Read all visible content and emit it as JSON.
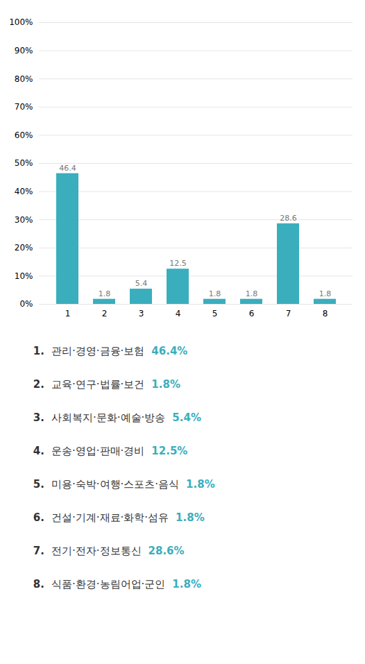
{
  "chart_data": {
    "type": "bar",
    "categories": [
      "1",
      "2",
      "3",
      "4",
      "5",
      "6",
      "7",
      "8"
    ],
    "values": [
      46.4,
      1.8,
      5.4,
      12.5,
      1.8,
      1.8,
      28.6,
      1.8
    ],
    "color": "#3aaebd",
    "ylim": [
      0,
      100
    ],
    "yticks": [
      {
        "value": 0,
        "label": "0%"
      },
      {
        "value": 10,
        "label": "10%"
      },
      {
        "value": 20,
        "label": "20%"
      },
      {
        "value": 30,
        "label": "30%"
      },
      {
        "value": 40,
        "label": "40%"
      },
      {
        "value": 50,
        "label": "50%"
      },
      {
        "value": 60,
        "label": "60%"
      },
      {
        "value": 70,
        "label": "70%"
      },
      {
        "value": 80,
        "label": "80%"
      },
      {
        "value": 90,
        "label": "90%"
      },
      {
        "value": 100,
        "label": "100%"
      }
    ],
    "grid": true,
    "data_labels": true,
    "annotations": [
      [
        "1.",
        "관리·경영·금융·보험",
        "46.4%"
      ],
      [
        "2.",
        "교육·연구·법률·보건",
        "1.8%"
      ],
      [
        "3.",
        "사회복지·문화·예술·방송",
        "5.4%"
      ],
      [
        "4.",
        "운송·영업·판매·경비",
        "12.5%"
      ],
      [
        "5.",
        "미용·숙박·여행·스포츠·음식",
        "1.8%"
      ],
      [
        "6.",
        "건설·기계·재료·화학·섬유",
        "1.8%"
      ],
      [
        "7.",
        "전기·전자·정보통신",
        "28.6%"
      ],
      [
        "8.",
        "식품·환경·농림어업·군인",
        "1.8%"
      ]
    ]
  }
}
